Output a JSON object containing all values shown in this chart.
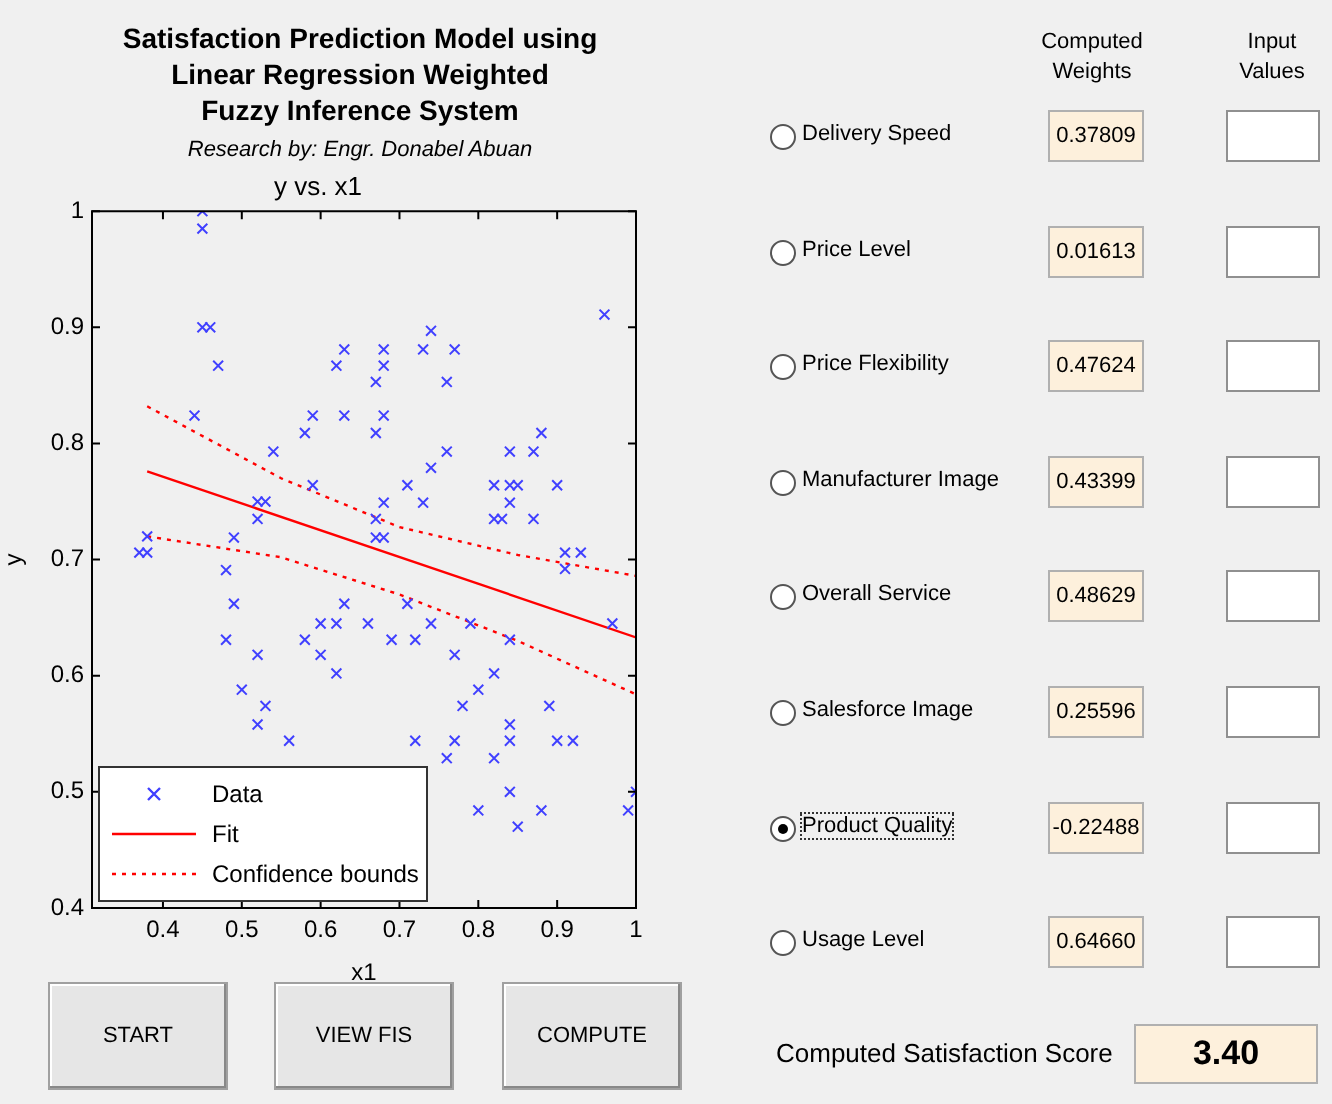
{
  "chart_data": [
    {
      "type": "scatter",
      "title": "y vs. x1",
      "xlabel": "x1",
      "ylabel": "y",
      "xlim": [
        0.31,
        1
      ],
      "xticks": [
        0.4,
        0.5,
        0.6,
        0.7,
        0.8,
        0.9,
        1
      ],
      "ylim": [
        0.4,
        1
      ],
      "yticks": [
        0.4,
        0.5,
        0.6,
        0.7,
        0.8,
        0.9,
        1
      ],
      "grid": false,
      "legend": "bottom left",
      "marker": "cross",
      "series": [
        {
          "name": "Data",
          "color": "#4040ff",
          "x": [
            0.45,
            0.45,
            0.45,
            0.46,
            0.47,
            0.44,
            0.62,
            0.63,
            0.58,
            0.59,
            0.63,
            0.54,
            0.59,
            0.52,
            0.53,
            0.52,
            0.49,
            0.38,
            0.37,
            0.38,
            0.96,
            0.74,
            0.68,
            0.68,
            0.73,
            0.77,
            0.67,
            0.76,
            0.68,
            0.67,
            0.88,
            0.76,
            0.84,
            0.87,
            0.74,
            0.71,
            0.82,
            0.84,
            0.85,
            0.9,
            0.68,
            0.73,
            0.84,
            0.67,
            0.82,
            0.83,
            0.87,
            0.67,
            0.68,
            0.91,
            0.93,
            0.91,
            0.48,
            0.49,
            0.48,
            0.52,
            0.5,
            0.53,
            0.52,
            0.56,
            0.58,
            0.6,
            0.6,
            0.62,
            0.62,
            0.63,
            0.66,
            0.71,
            0.74,
            0.79,
            0.69,
            0.72,
            0.77,
            0.84,
            0.82,
            0.8,
            0.78,
            0.89,
            0.84,
            0.72,
            0.77,
            0.84,
            0.9,
            0.92,
            0.76,
            0.82,
            0.84,
            1.0,
            0.8,
            0.88,
            0.99,
            0.85,
            0.97
          ],
          "values": [
            1.0,
            0.985,
            0.9,
            0.9,
            0.867,
            0.824,
            0.867,
            0.881,
            0.809,
            0.824,
            0.824,
            0.793,
            0.764,
            0.75,
            0.75,
            0.735,
            0.719,
            0.72,
            0.706,
            0.706,
            0.911,
            0.897,
            0.881,
            0.867,
            0.881,
            0.881,
            0.853,
            0.853,
            0.824,
            0.809,
            0.809,
            0.793,
            0.793,
            0.793,
            0.779,
            0.764,
            0.764,
            0.764,
            0.764,
            0.764,
            0.749,
            0.749,
            0.749,
            0.735,
            0.735,
            0.735,
            0.735,
            0.719,
            0.719,
            0.706,
            0.706,
            0.692,
            0.691,
            0.662,
            0.631,
            0.618,
            0.588,
            0.574,
            0.558,
            0.544,
            0.631,
            0.645,
            0.618,
            0.645,
            0.602,
            0.662,
            0.645,
            0.662,
            0.645,
            0.645,
            0.631,
            0.631,
            0.618,
            0.631,
            0.602,
            0.588,
            0.574,
            0.574,
            0.558,
            0.544,
            0.544,
            0.544,
            0.544,
            0.544,
            0.529,
            0.529,
            0.5,
            0.5,
            0.484,
            0.484,
            0.484,
            0.47,
            0.645
          ]
        },
        {
          "name": "Fit",
          "type": "line",
          "color": "#ff0000",
          "line_style": "solid",
          "marker": "none",
          "x": [
            0.38,
            1
          ],
          "values": [
            0.776,
            0.633
          ]
        },
        {
          "name": "Confidence bounds",
          "type": "line",
          "color": "#ff0000",
          "line_style": "dotted",
          "marker": "none",
          "x": [
            0.38,
            0.55,
            0.7,
            0.85,
            1
          ],
          "values": [
            0.832,
            0.77,
            0.728,
            0.704,
            0.686
          ]
        },
        {
          "type": "line",
          "color": "#ff0000",
          "line_style": "dotted",
          "marker": "none",
          "x": [
            0.38,
            0.55,
            0.7,
            0.85,
            1
          ],
          "values": [
            0.72,
            0.702,
            0.67,
            0.63,
            0.584
          ]
        }
      ]
    },
    {
      "type": "other",
      "title": "Satisfaction Prediction Model using\nLinear Regression Weighted\nFuzzy Inference System",
      "subtitle": "Research by: Engr. Donabel Abuan",
      "categories": [
        "Delivery Speed",
        "Price Level",
        "Price Flexibility",
        "Manufacturer Image",
        "Overall Service",
        "Salesforce Image",
        "Product Quality",
        "Usage Level"
      ],
      "value_labels": [
        "0.37809",
        "0.01613",
        "0.47624",
        "0.43399",
        "0.48629",
        "0.25596",
        "-0.22488",
        "0.64660"
      ],
      "annotations": [
        "Computed Weights",
        "Input Values",
        "Computed Satisfaction Score",
        "3.40",
        "START",
        "VIEW FIS",
        "COMPUTE"
      ]
    }
  ]
}
